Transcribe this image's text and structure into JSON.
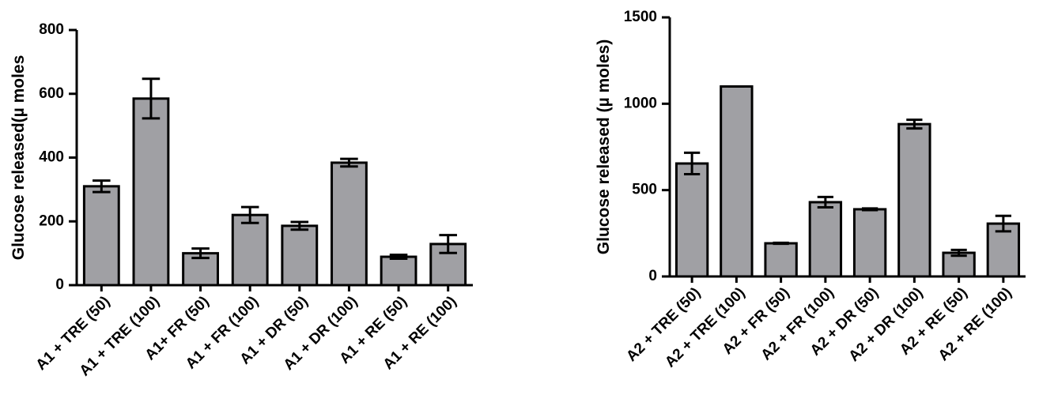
{
  "chart_data": [
    {
      "type": "bar",
      "ylabel": "Glucose released(µ moles",
      "categories": [
        "A1 + TRE (50)",
        "A1 + TRE (100)",
        "A1+ FR (50)",
        "A1 + FR (100)",
        "A1 + DR (50)",
        "A1 + DR (100)",
        "A1 + RE (50)",
        "A1 + RE (100)"
      ],
      "values": [
        310,
        585,
        100,
        220,
        186,
        384,
        89,
        129
      ],
      "errors": [
        18,
        62,
        15,
        25,
        12,
        12,
        6,
        28
      ],
      "color": "#a0a0a4",
      "ylim": [
        0,
        800
      ],
      "yticks": [
        0,
        200,
        400,
        600,
        800
      ]
    },
    {
      "type": "bar",
      "ylabel": "Glucose released (µ moles)",
      "categories": [
        "A2 + TRE (50)",
        "A2 + TRE (100)",
        "A2 + FR (50)",
        "A2 + FR (100)",
        "A2 + DR (50)",
        "A2 + DR (100)",
        "A2 + RE (50)",
        "A2 + RE (100)"
      ],
      "values": [
        654,
        1100,
        192,
        430,
        389,
        882,
        137,
        306
      ],
      "errors": [
        62,
        0,
        3,
        30,
        5,
        25,
        17,
        45
      ],
      "color": "#a0a0a4",
      "ylim": [
        0,
        1500
      ],
      "yticks": [
        0,
        500,
        1000,
        1500
      ]
    }
  ]
}
